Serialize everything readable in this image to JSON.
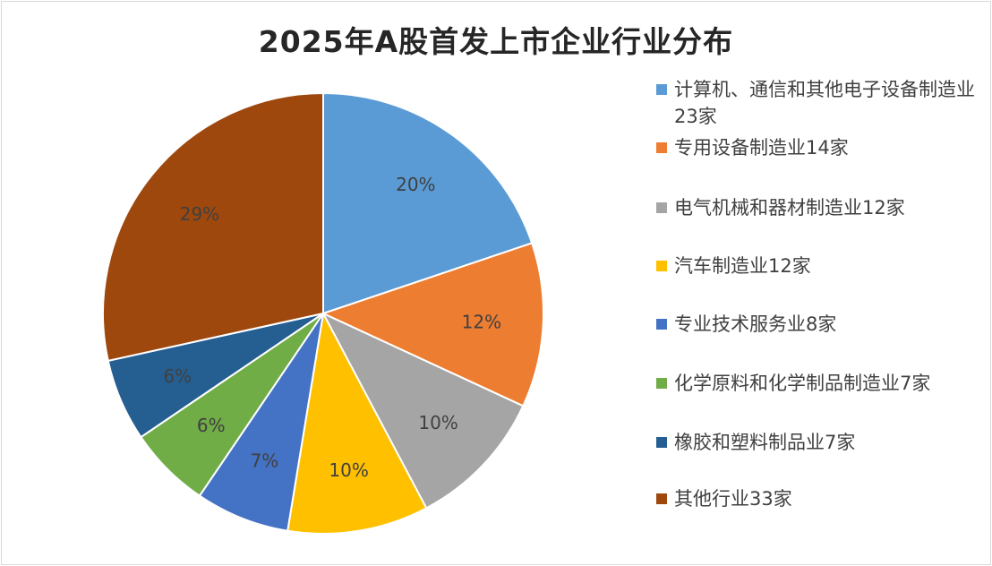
{
  "chart_data": {
    "type": "pie",
    "title": "2025年A股首发上市企业行业分布",
    "start": "top",
    "direction": "clockwise",
    "legend_position": "right",
    "categories": [
      "计算机、通信和其他电子设备制造业23家",
      "专用设备制造业14家",
      "电气机械和器材制造业12家",
      "汽车制造业12家",
      "专业技术服务业8家",
      "化学原料和化学制品制造业7家",
      "橡胶和塑料制品业7家",
      "其他行业33家"
    ],
    "values": [
      23,
      14,
      12,
      12,
      8,
      7,
      7,
      33
    ],
    "labels": [
      "20%",
      "12%",
      "10%",
      "10%",
      "7%",
      "6%",
      "6%",
      "29%"
    ],
    "colors": [
      "#5b9bd5",
      "#ed7d31",
      "#a5a5a5",
      "#ffc000",
      "#4472c4",
      "#70ad47",
      "#255e91",
      "#9e480e"
    ]
  }
}
